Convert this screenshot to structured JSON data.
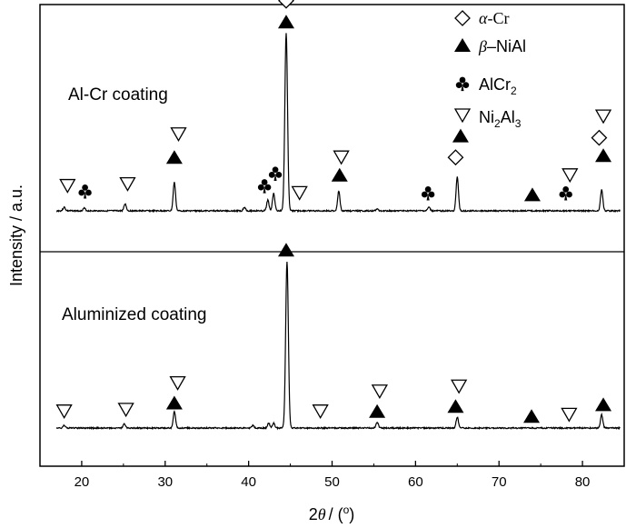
{
  "chart_data": {
    "type": "line",
    "xlabel": "2θ / (o)",
    "xlabel_parts": {
      "theta": "θ",
      "prefix": "2",
      "slash": "/ (",
      "degree": "o",
      "close": ")"
    },
    "ylabel": "Intensity / a.u.",
    "xlim": [
      15,
      85
    ],
    "xticks": [
      20,
      30,
      40,
      50,
      60,
      70,
      80
    ],
    "grid": false,
    "legend_position": "top-right",
    "legend": [
      {
        "marker": "diamond",
        "prefix": "α",
        "text": "-Cr",
        "sub": "",
        "suffix": ""
      },
      {
        "marker": "triangle-up-filled",
        "prefix": "β",
        "text": "–NiAl",
        "sub": "",
        "suffix": ""
      },
      {
        "marker": "club",
        "prefix": "",
        "text": "AlCr",
        "sub": "2",
        "suffix": ""
      },
      {
        "marker": "triangle-down",
        "prefix": "",
        "text": "Ni",
        "sub": "2",
        "suffix": "Al3"
      }
    ],
    "legend_ni2al3": {
      "a": "Ni",
      "b": "2",
      "c": "Al",
      "d": "3"
    },
    "panels": [
      {
        "name": "Al-Cr coating",
        "peaks": [
          {
            "x": 17.9,
            "h": 0.02
          },
          {
            "x": 20.3,
            "h": 0.015
          },
          {
            "x": 25.2,
            "h": 0.04
          },
          {
            "x": 31.1,
            "h": 0.16
          },
          {
            "x": 39.5,
            "h": 0.02
          },
          {
            "x": 42.3,
            "h": 0.06
          },
          {
            "x": 43.0,
            "h": 0.1
          },
          {
            "x": 44.5,
            "h": 1.0
          },
          {
            "x": 50.8,
            "h": 0.11
          },
          {
            "x": 55.4,
            "h": 0.01
          },
          {
            "x": 61.6,
            "h": 0.02
          },
          {
            "x": 65.0,
            "h": 0.19
          },
          {
            "x": 82.3,
            "h": 0.12
          }
        ],
        "markers": [
          {
            "x": 18.3,
            "type": "triangle-down",
            "level": 0.14
          },
          {
            "x": 20.4,
            "type": "club",
            "level": 0.11
          },
          {
            "x": 25.5,
            "type": "triangle-down",
            "level": 0.15
          },
          {
            "x": 31.1,
            "type": "triangle-up-filled",
            "level": 0.3
          },
          {
            "x": 31.6,
            "type": "triangle-down",
            "level": 0.43
          },
          {
            "x": 41.9,
            "type": "club",
            "level": 0.14
          },
          {
            "x": 43.2,
            "type": "club",
            "level": 0.21
          },
          {
            "x": 44.5,
            "type": "triangle-up-filled",
            "level": 1.06
          },
          {
            "x": 44.5,
            "type": "diamond",
            "level": 1.18
          },
          {
            "x": 46.1,
            "type": "triangle-down",
            "level": 0.1
          },
          {
            "x": 50.9,
            "type": "triangle-up-filled",
            "level": 0.2
          },
          {
            "x": 51.1,
            "type": "triangle-down",
            "level": 0.3
          },
          {
            "x": 61.5,
            "type": "club",
            "level": 0.1
          },
          {
            "x": 64.8,
            "type": "diamond",
            "level": 0.3
          },
          {
            "x": 65.4,
            "type": "triangle-up-filled",
            "level": 0.42
          },
          {
            "x": 74.0,
            "type": "triangle-up-filled",
            "level": 0.09
          },
          {
            "x": 78.0,
            "type": "club",
            "level": 0.1
          },
          {
            "x": 78.5,
            "type": "triangle-down",
            "level": 0.2
          },
          {
            "x": 82.0,
            "type": "diamond",
            "level": 0.41
          },
          {
            "x": 82.5,
            "type": "triangle-up-filled",
            "level": 0.31
          },
          {
            "x": 82.5,
            "type": "triangle-down",
            "level": 0.53
          }
        ]
      },
      {
        "name": "Aluminized coating",
        "peaks": [
          {
            "x": 17.9,
            "h": 0.015
          },
          {
            "x": 25.1,
            "h": 0.025
          },
          {
            "x": 31.1,
            "h": 0.1
          },
          {
            "x": 40.5,
            "h": 0.015
          },
          {
            "x": 42.4,
            "h": 0.03
          },
          {
            "x": 43.0,
            "h": 0.03
          },
          {
            "x": 44.6,
            "h": 1.0
          },
          {
            "x": 55.4,
            "h": 0.035
          },
          {
            "x": 65.0,
            "h": 0.065
          },
          {
            "x": 82.3,
            "h": 0.08
          }
        ],
        "markers": [
          {
            "x": 17.9,
            "type": "triangle-down",
            "level": 0.1
          },
          {
            "x": 25.3,
            "type": "triangle-down",
            "level": 0.11
          },
          {
            "x": 31.1,
            "type": "triangle-up-filled",
            "level": 0.15
          },
          {
            "x": 31.5,
            "type": "triangle-down",
            "level": 0.27
          },
          {
            "x": 44.5,
            "type": "triangle-up-filled",
            "level": 1.07
          },
          {
            "x": 48.6,
            "type": "triangle-down",
            "level": 0.1
          },
          {
            "x": 55.4,
            "type": "triangle-up-filled",
            "level": 0.1
          },
          {
            "x": 55.7,
            "type": "triangle-down",
            "level": 0.22
          },
          {
            "x": 64.8,
            "type": "triangle-up-filled",
            "level": 0.13
          },
          {
            "x": 65.2,
            "type": "triangle-down",
            "level": 0.25
          },
          {
            "x": 73.9,
            "type": "triangle-up-filled",
            "level": 0.07
          },
          {
            "x": 78.4,
            "type": "triangle-down",
            "level": 0.08
          },
          {
            "x": 82.5,
            "type": "triangle-up-filled",
            "level": 0.14
          }
        ]
      }
    ]
  }
}
